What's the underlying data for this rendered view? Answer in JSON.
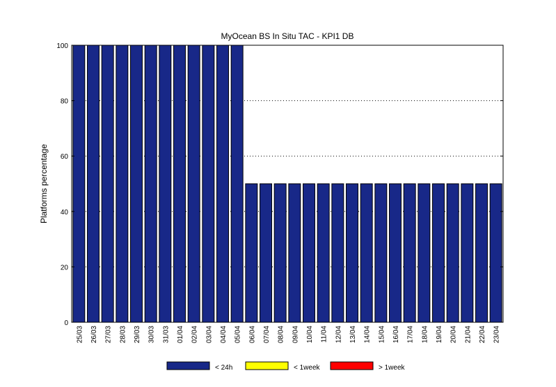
{
  "chart_data": {
    "type": "bar",
    "title": "MyOcean  BS In Situ TAC - KPI1  DB",
    "xlabel": "",
    "ylabel": "Platforms percentage",
    "ylim": [
      0,
      100
    ],
    "yticks": [
      0,
      20,
      40,
      60,
      80,
      100
    ],
    "grid": "y dotted",
    "stacked": true,
    "categories": [
      "25/03",
      "26/03",
      "27/03",
      "28/03",
      "29/03",
      "30/03",
      "31/03",
      "01/04",
      "02/04",
      "03/04",
      "04/04",
      "05/04",
      "06/04",
      "07/04",
      "08/04",
      "09/04",
      "10/04",
      "11/04",
      "12/04",
      "13/04",
      "14/04",
      "15/04",
      "16/04",
      "17/04",
      "18/04",
      "19/04",
      "20/04",
      "21/04",
      "22/04",
      "23/04"
    ],
    "series": [
      {
        "name": "< 24h",
        "color": "#182888",
        "values": [
          100,
          100,
          100,
          100,
          100,
          100,
          100,
          100,
          100,
          100,
          100,
          100,
          50,
          50,
          50,
          50,
          50,
          50,
          50,
          50,
          50,
          50,
          50,
          50,
          50,
          50,
          50,
          50,
          50,
          50
        ]
      },
      {
        "name": "< 1week",
        "color": "#ffff00",
        "values": [
          0,
          0,
          0,
          0,
          0,
          0,
          0,
          0,
          0,
          0,
          0,
          0,
          0,
          0,
          0,
          0,
          0,
          0,
          0,
          0,
          0,
          0,
          0,
          0,
          0,
          0,
          0,
          0,
          0,
          0
        ]
      },
      {
        "name": "> 1week",
        "color": "#ff0000",
        "values": [
          0,
          0,
          0,
          0,
          0,
          0,
          0,
          0,
          0,
          0,
          0,
          0,
          0,
          0,
          0,
          0,
          0,
          0,
          0,
          0,
          0,
          0,
          0,
          0,
          0,
          0,
          0,
          0,
          0,
          0
        ]
      }
    ],
    "legend_position": "bottom"
  }
}
